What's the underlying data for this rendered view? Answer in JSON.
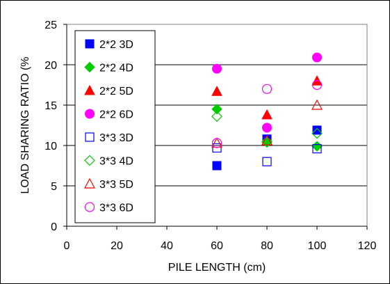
{
  "chart_data": {
    "type": "scatter",
    "xlabel": "PILE LENGTH (cm)",
    "ylabel": "LOAD SHARING RATIO (%",
    "xlim": [
      0,
      120
    ],
    "ylim": [
      0,
      25
    ],
    "xticks": [
      0,
      20,
      40,
      60,
      80,
      100,
      120
    ],
    "yticks": [
      0,
      5,
      10,
      15,
      20,
      25
    ],
    "grid": "horizontal",
    "legend_position": "top-left",
    "series": [
      {
        "name": "2*2 3D",
        "marker": "square",
        "filled": true,
        "color": "#0000ff",
        "points": [
          {
            "x": 60,
            "y": 7.5
          },
          {
            "x": 80,
            "y": 10.8
          },
          {
            "x": 100,
            "y": 11.9
          }
        ]
      },
      {
        "name": "2*2 4D",
        "marker": "diamond",
        "filled": true,
        "color": "#00cc00",
        "points": [
          {
            "x": 60,
            "y": 14.5
          },
          {
            "x": 80,
            "y": 10.5
          },
          {
            "x": 100,
            "y": 9.9
          }
        ]
      },
      {
        "name": "2*2 5D",
        "marker": "triangle",
        "filled": true,
        "color": "#ff0000",
        "points": [
          {
            "x": 60,
            "y": 16.7
          },
          {
            "x": 80,
            "y": 13.8
          },
          {
            "x": 100,
            "y": 18.0
          }
        ]
      },
      {
        "name": "2*2 6D",
        "marker": "circle",
        "filled": true,
        "color": "#ff00ff",
        "points": [
          {
            "x": 60,
            "y": 19.5
          },
          {
            "x": 80,
            "y": 12.2
          },
          {
            "x": 100,
            "y": 20.9
          }
        ]
      },
      {
        "name": "3*3 3D",
        "marker": "square",
        "filled": false,
        "color": "#0000ff",
        "points": [
          {
            "x": 60,
            "y": 9.7
          },
          {
            "x": 80,
            "y": 8.0
          },
          {
            "x": 100,
            "y": 9.6
          }
        ]
      },
      {
        "name": "3*3 4D",
        "marker": "diamond",
        "filled": false,
        "color": "#00cc00",
        "points": [
          {
            "x": 60,
            "y": 13.6
          },
          {
            "x": 80,
            "y": 10.4
          },
          {
            "x": 100,
            "y": 11.5
          }
        ]
      },
      {
        "name": "3*3 5D",
        "marker": "triangle",
        "filled": false,
        "color": "#ff0000",
        "points": [
          {
            "x": 60,
            "y": 10.3
          },
          {
            "x": 80,
            "y": 10.6
          },
          {
            "x": 100,
            "y": 15.0
          }
        ]
      },
      {
        "name": "3*3 6D",
        "marker": "circle",
        "filled": false,
        "color": "#ff00ff",
        "points": [
          {
            "x": 60,
            "y": 10.3
          },
          {
            "x": 80,
            "y": 17.0
          },
          {
            "x": 100,
            "y": 17.5
          }
        ]
      }
    ]
  }
}
